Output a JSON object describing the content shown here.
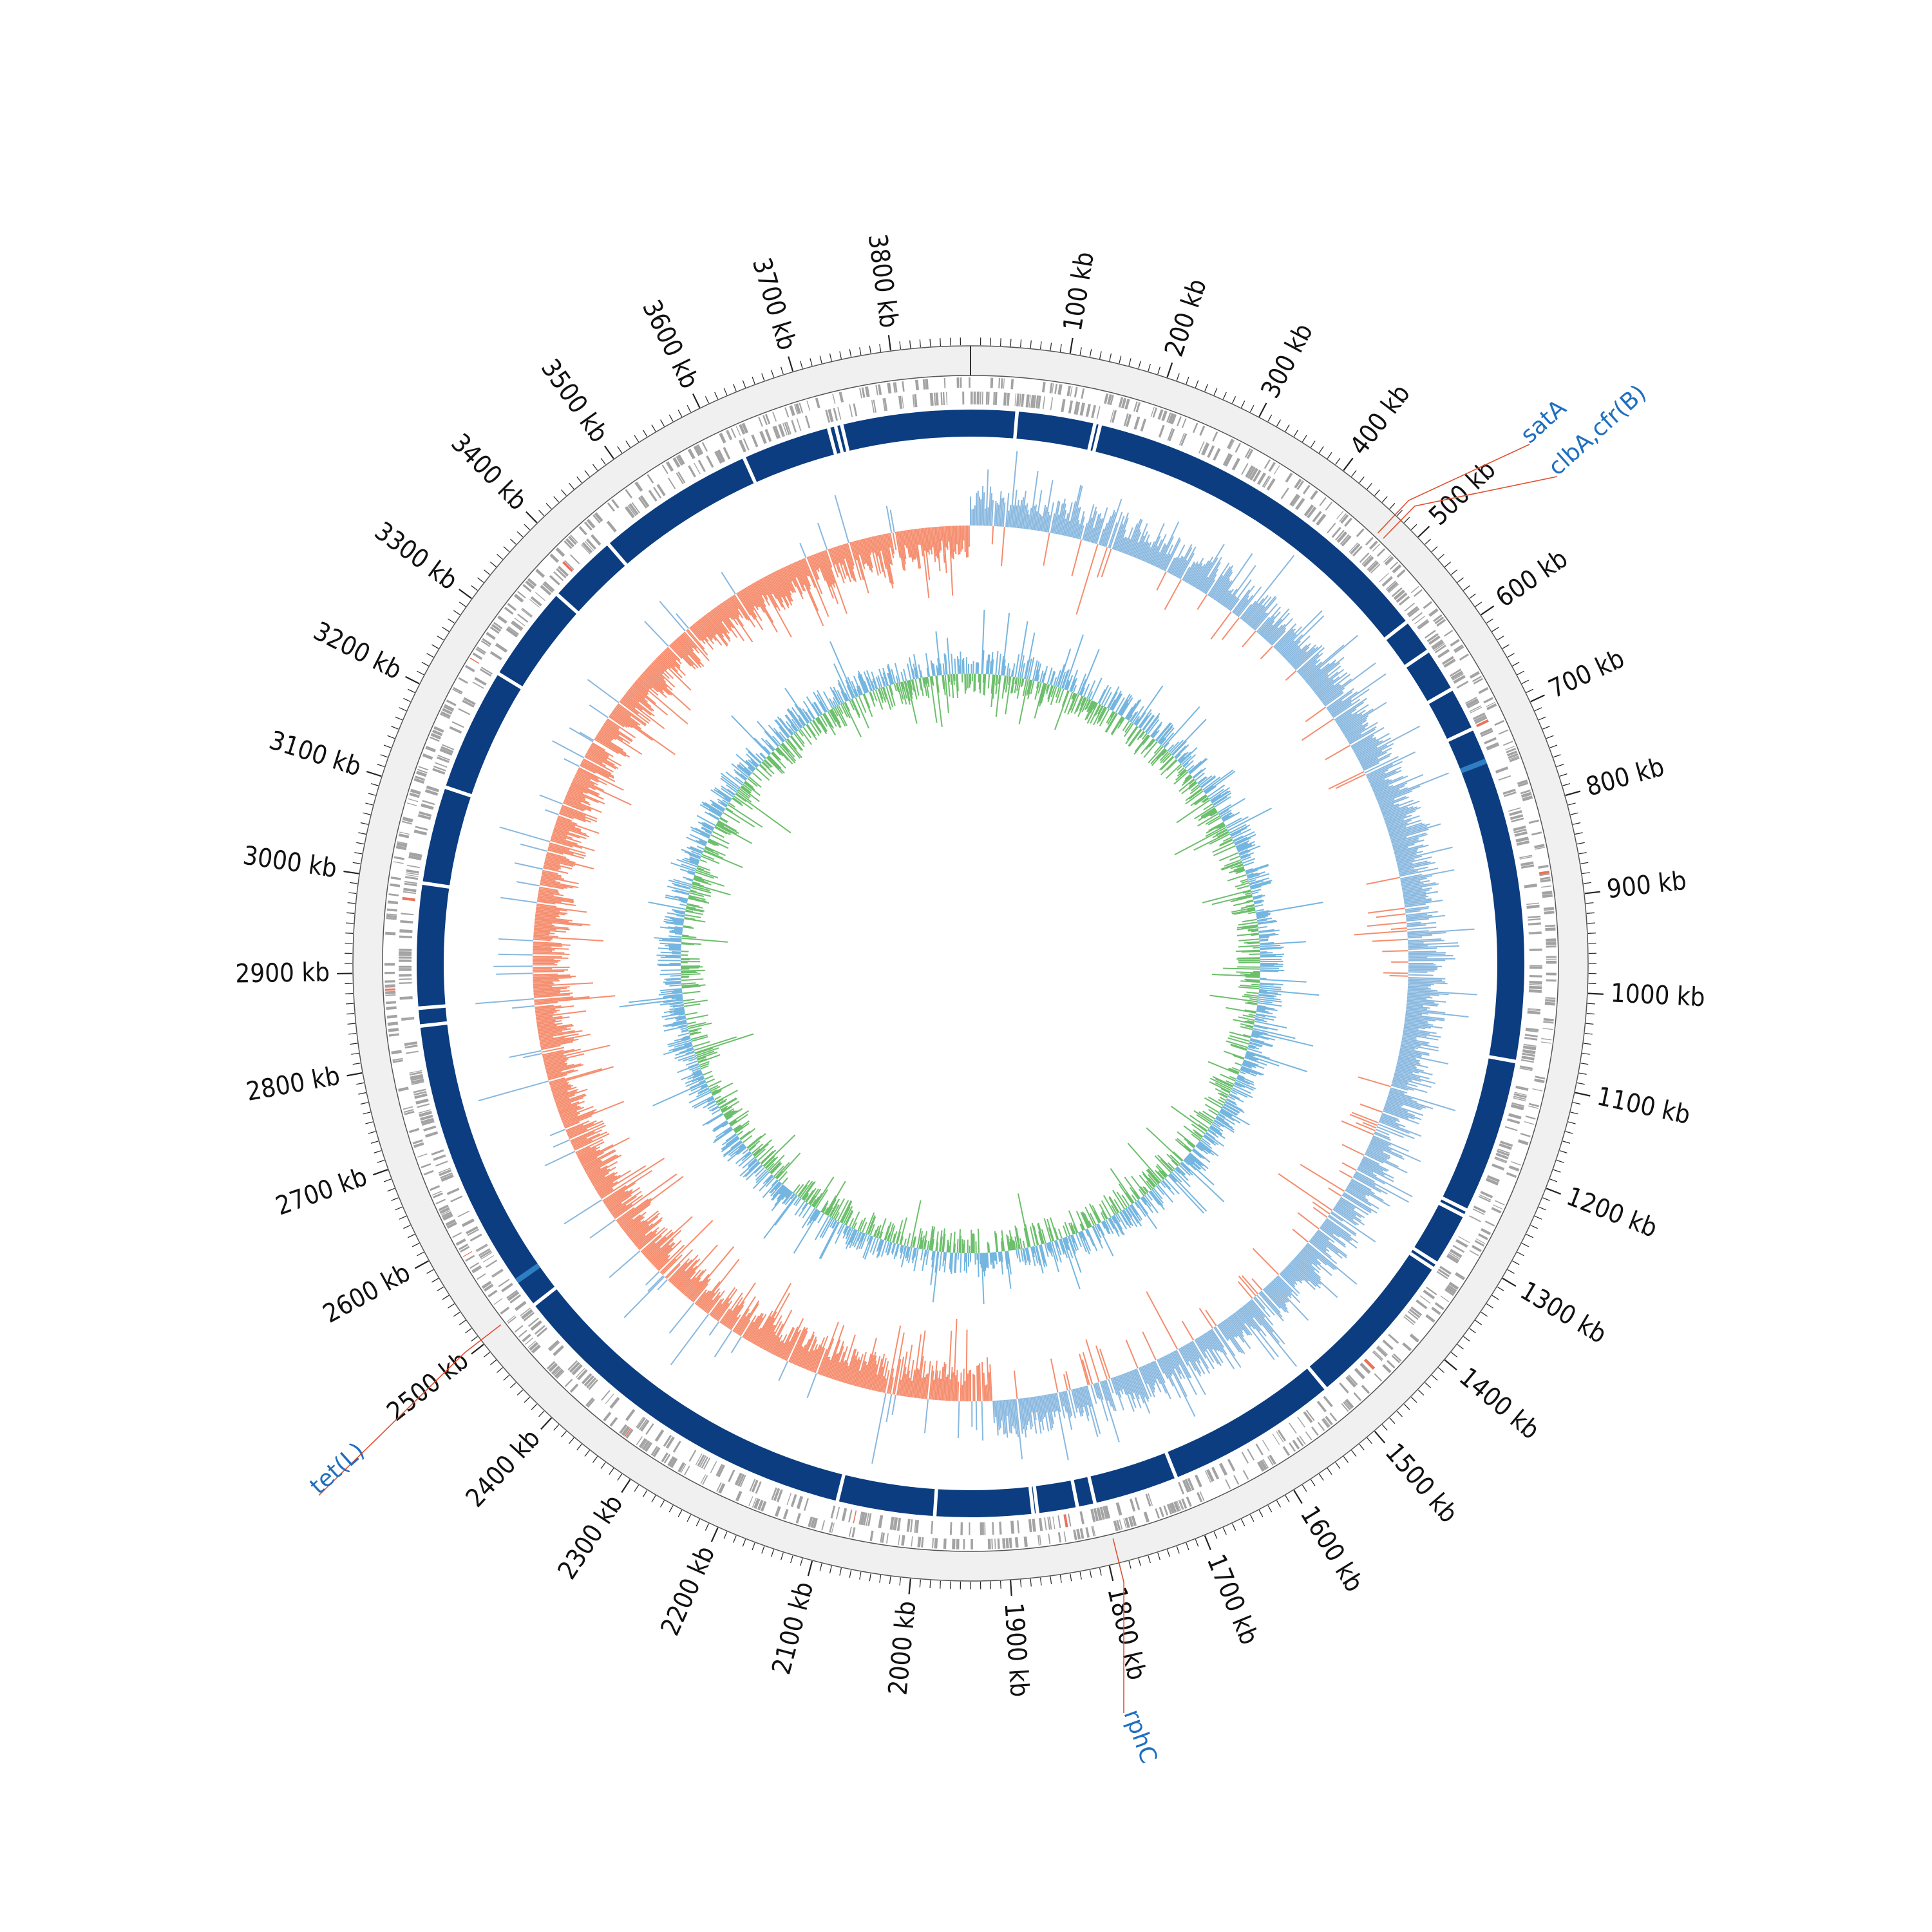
{
  "genome": {
    "length_kb": 3880,
    "tick_major_kb": 100,
    "tick_minor_kb": 10,
    "tick_labels": [
      "100 kb",
      "200 kb",
      "300 kb",
      "400 kb",
      "500 kb",
      "600 kb",
      "700 kb",
      "800 kb",
      "900 kb",
      "1000 kb",
      "1100 kb",
      "1200 kb",
      "1300 kb",
      "1400 kb",
      "1500 kb",
      "1600 kb",
      "1700 kb",
      "1800 kb",
      "1900 kb",
      "2000 kb",
      "2100 kb",
      "2200 kb",
      "2300 kb",
      "2400 kb",
      "2500 kb",
      "2600 kb",
      "2700 kb",
      "2800 kb",
      "2900 kb",
      "3000 kb",
      "3100 kb",
      "3200 kb",
      "3300 kb",
      "3400 kb",
      "3500 kb",
      "3600 kb",
      "3700 kb",
      "3800 kb"
    ]
  },
  "annotations": [
    {
      "label": "satA",
      "position_kb": 468
    },
    {
      "label": "clbA,cfr(B)",
      "position_kb": 476
    },
    {
      "label": "rphC",
      "position_kb": 1790
    },
    {
      "label": "tet(L)",
      "position_kb": 2505
    }
  ],
  "contigs": {
    "color": "#0b3d80",
    "highlight_color": "#2d7fc1",
    "gaps_kb": [
      52,
      140,
      146,
      560,
      600,
      650,
      700,
      1080,
      1255,
      1262,
      1323,
      1330,
      1510,
      1705,
      1800,
      1820,
      1865,
      1870,
      1980,
      2090,
      2500,
      2840,
      2860,
      3000,
      3110,
      3250,
      3360,
      3440,
      3620,
      3720,
      3728,
      3735
    ]
  },
  "colors": {
    "outer_ring": "#f0f0f0",
    "cds": "#a3a3a3",
    "cds_highlight": "#e8735a",
    "skew_positive": "#89b8df",
    "skew_negative": "#f58d6e",
    "gc_positive": "#75b6e0",
    "gc_negative": "#6cbf6c",
    "annotation_line": "#e05030"
  }
}
